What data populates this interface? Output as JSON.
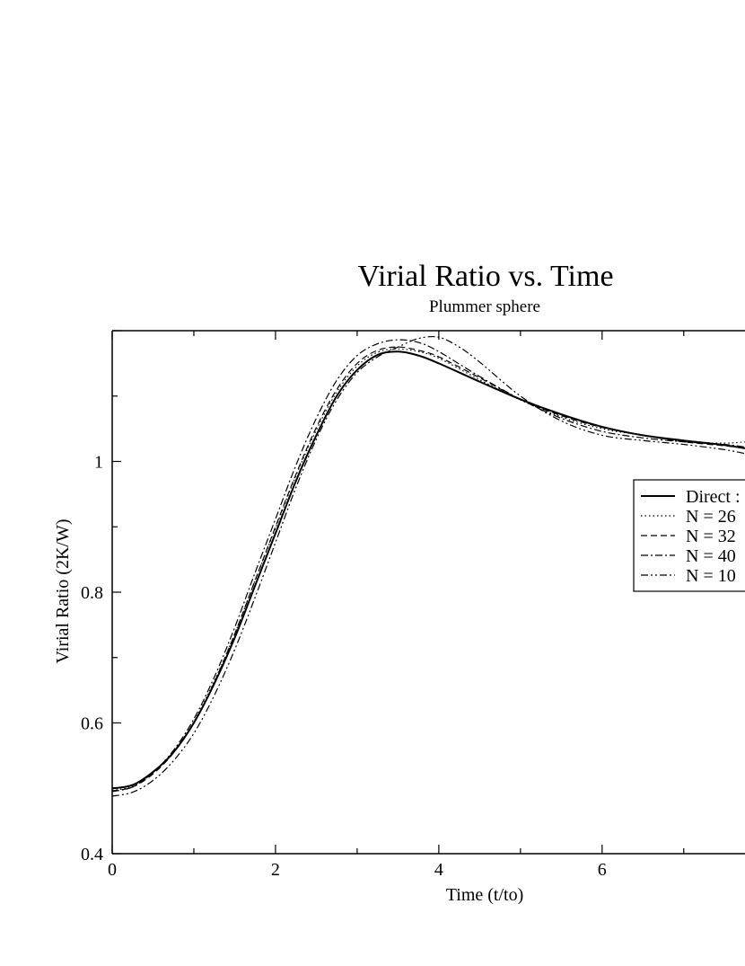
{
  "chart_data": {
    "type": "line",
    "title": "Virial Ratio vs. Time",
    "subtitle": "Plummer sphere",
    "xlabel": "Time (t/to)",
    "ylabel": "Virial Ratio (2K/W)",
    "xlim": [
      0,
      7.75
    ],
    "ylim": [
      0.4,
      1.2
    ],
    "x_ticks": [
      0,
      2,
      4,
      6
    ],
    "x_tick_labels": [
      "0",
      "2",
      "4",
      "6"
    ],
    "y_ticks": [
      0.4,
      0.6,
      0.8,
      1.0
    ],
    "y_tick_labels": [
      "0.4",
      "0.6",
      "0.8",
      "1"
    ],
    "grid": false,
    "legend_position": "right",
    "series": [
      {
        "name": "Direct :",
        "style": "solid",
        "color": "#000000",
        "x": [
          0,
          0.25,
          0.5,
          0.75,
          1.0,
          1.25,
          1.5,
          1.75,
          2.0,
          2.25,
          2.5,
          2.75,
          3.0,
          3.25,
          3.5,
          3.75,
          4.0,
          4.5,
          5.0,
          5.5,
          6.0,
          6.5,
          7.0,
          7.5,
          7.75
        ],
        "y": [
          0.5,
          0.505,
          0.525,
          0.555,
          0.6,
          0.66,
          0.73,
          0.81,
          0.89,
          0.97,
          1.04,
          1.1,
          1.14,
          1.163,
          1.168,
          1.162,
          1.15,
          1.122,
          1.095,
          1.072,
          1.053,
          1.04,
          1.032,
          1.025,
          1.02
        ]
      },
      {
        "name": "N = 26",
        "style": "dotted",
        "color": "#000000",
        "x": [
          0,
          0.25,
          0.5,
          0.75,
          1.0,
          1.25,
          1.5,
          1.75,
          2.0,
          2.25,
          2.5,
          2.75,
          3.0,
          3.25,
          3.5,
          3.75,
          4.0,
          4.5,
          5.0,
          5.5,
          6.0,
          6.5,
          7.0,
          7.5,
          7.75
        ],
        "y": [
          0.497,
          0.503,
          0.524,
          0.556,
          0.602,
          0.664,
          0.736,
          0.818,
          0.898,
          0.978,
          1.048,
          1.106,
          1.146,
          1.167,
          1.172,
          1.168,
          1.158,
          1.125,
          1.094,
          1.068,
          1.05,
          1.04,
          1.03,
          1.028,
          1.03
        ]
      },
      {
        "name": "N = 32",
        "style": "dashed",
        "color": "#000000",
        "x": [
          0,
          0.25,
          0.5,
          0.75,
          1.0,
          1.25,
          1.5,
          1.75,
          2.0,
          2.25,
          2.5,
          2.75,
          3.0,
          3.25,
          3.5,
          3.75,
          4.0,
          4.5,
          5.0,
          5.5,
          6.0,
          6.5,
          7.0,
          7.5,
          7.75
        ],
        "y": [
          0.496,
          0.502,
          0.522,
          0.554,
          0.6,
          0.662,
          0.736,
          0.818,
          0.9,
          0.98,
          1.052,
          1.11,
          1.15,
          1.17,
          1.175,
          1.17,
          1.16,
          1.128,
          1.095,
          1.07,
          1.052,
          1.04,
          1.03,
          1.024,
          1.02
        ]
      },
      {
        "name": "N = 40",
        "style": "dashdot",
        "color": "#000000",
        "x": [
          0,
          0.25,
          0.5,
          0.75,
          1.0,
          1.25,
          1.5,
          1.75,
          2.0,
          2.25,
          2.5,
          2.75,
          3.0,
          3.25,
          3.5,
          3.75,
          4.0,
          4.5,
          5.0,
          5.5,
          6.0,
          6.5,
          7.0,
          7.5,
          7.75
        ],
        "y": [
          0.495,
          0.502,
          0.524,
          0.558,
          0.606,
          0.67,
          0.746,
          0.83,
          0.912,
          0.994,
          1.066,
          1.124,
          1.162,
          1.18,
          1.186,
          1.182,
          1.168,
          1.13,
          1.095,
          1.066,
          1.046,
          1.036,
          1.03,
          1.026,
          1.022
        ]
      },
      {
        "name": "N = 10",
        "style": "dashdotdot",
        "color": "#000000",
        "x": [
          0,
          0.25,
          0.5,
          0.75,
          1.0,
          1.25,
          1.5,
          1.75,
          2.0,
          2.25,
          2.5,
          2.75,
          3.0,
          3.25,
          3.5,
          3.75,
          4.0,
          4.25,
          4.5,
          5.0,
          5.5,
          6.0,
          6.5,
          7.0,
          7.5,
          7.75
        ],
        "y": [
          0.488,
          0.494,
          0.512,
          0.542,
          0.584,
          0.642,
          0.712,
          0.792,
          0.876,
          0.96,
          1.034,
          1.094,
          1.136,
          1.16,
          1.175,
          1.188,
          1.19,
          1.175,
          1.152,
          1.1,
          1.062,
          1.04,
          1.032,
          1.026,
          1.018,
          1.012
        ]
      }
    ]
  }
}
